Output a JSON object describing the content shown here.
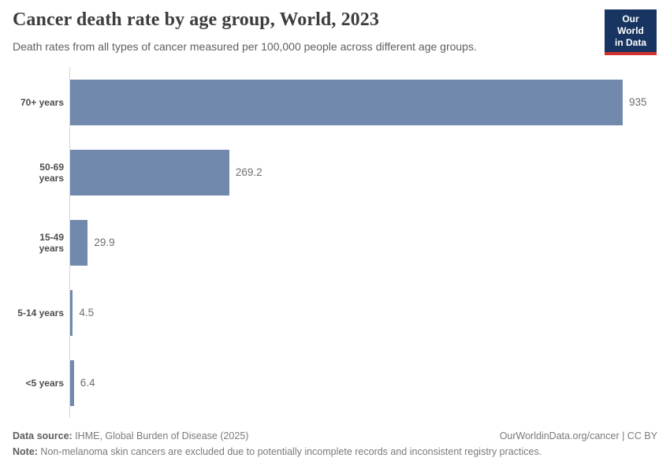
{
  "header": {
    "title": "Cancer death rate by age group, World, 2023",
    "subtitle": "Death rates from all types of cancer measured per 100,000 people across different age groups.",
    "logo": {
      "line1": "Our World",
      "line2": "in Data"
    }
  },
  "chart_data": {
    "type": "bar",
    "orientation": "horizontal",
    "title": "Cancer death rate by age group, World, 2023",
    "subtitle": "Death rates from all types of cancer measured per 100,000 people across different age groups.",
    "categories": [
      "70+ years",
      "50-69 years",
      "15-49 years",
      "5-14 years",
      "<5 years"
    ],
    "values": [
      935,
      269.2,
      29.9,
      4.5,
      6.4
    ],
    "value_labels": [
      "935",
      "269.2",
      "29.9",
      "4.5",
      "6.4"
    ],
    "xlabel": "",
    "ylabel": "",
    "xlim": [
      0,
      935
    ],
    "grid": false,
    "legend": false,
    "bar_color": "#7089ac",
    "axis_color": "#d6d6d6"
  },
  "footer": {
    "source_label": "Data source:",
    "source_text": " IHME, Global Burden of Disease (2025)",
    "right_text": "OurWorldinData.org/cancer | CC BY",
    "note_label": "Note:",
    "note_text": " Non-melanoma skin cancers are excluded due to potentially incomplete records and inconsistent registry practices."
  },
  "colors": {
    "bar": "#7089ac",
    "axis": "#d6d6d6",
    "logo_background": "#183561",
    "logo_stripe": "#d2302c"
  }
}
